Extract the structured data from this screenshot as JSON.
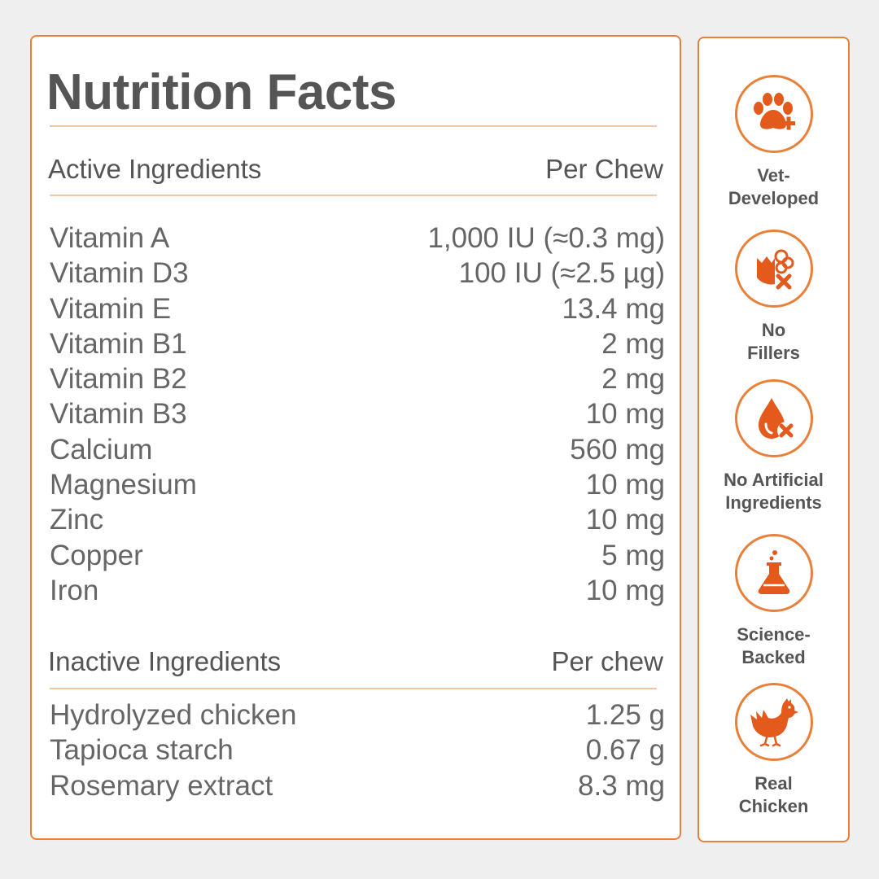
{
  "title": "Nutrition Facts",
  "active": {
    "heading": "Active Ingredients",
    "per_label": "Per Chew",
    "items": [
      {
        "name": "Vitamin A",
        "amount": "1,000 IU (≈0.3 mg)"
      },
      {
        "name": "Vitamin D3",
        "amount": "100 IU (≈2.5 µg)"
      },
      {
        "name": "Vitamin E",
        "amount": "13.4 mg"
      },
      {
        "name": "Vitamin B1",
        "amount": "2 mg"
      },
      {
        "name": "Vitamin B2",
        "amount": "2 mg"
      },
      {
        "name": "Vitamin B3",
        "amount": "10 mg"
      },
      {
        "name": "Calcium",
        "amount": "560 mg"
      },
      {
        "name": "Magnesium",
        "amount": "10 mg"
      },
      {
        "name": "Zinc",
        "amount": "10 mg"
      },
      {
        "name": "Copper",
        "amount": "5 mg"
      },
      {
        "name": "Iron",
        "amount": "10 mg"
      }
    ]
  },
  "inactive": {
    "heading": "Inactive Ingredients",
    "per_label": "Per chew",
    "items": [
      {
        "name": "Hydrolyzed chicken",
        "amount": "1.25 g"
      },
      {
        "name": "Tapioca starch",
        "amount": "0.67 g"
      },
      {
        "name": "Rosemary extract",
        "amount": "8.3 mg"
      }
    ]
  },
  "badges": [
    {
      "icon": "paw-plus-icon",
      "line1": "Vet-",
      "line2": "Developed"
    },
    {
      "icon": "no-fillers-icon",
      "line1": "No",
      "line2": "Fillers"
    },
    {
      "icon": "drop-x-icon",
      "line1": "No Artificial",
      "line2": "Ingredients"
    },
    {
      "icon": "flask-icon",
      "line1": "Science-",
      "line2": "Backed"
    },
    {
      "icon": "chicken-icon",
      "line1": "Real",
      "line2": "Chicken"
    }
  ],
  "colors": {
    "accent": "#e8803a",
    "icon": "#e35a1c",
    "text": "#555555",
    "background": "#efefef"
  }
}
